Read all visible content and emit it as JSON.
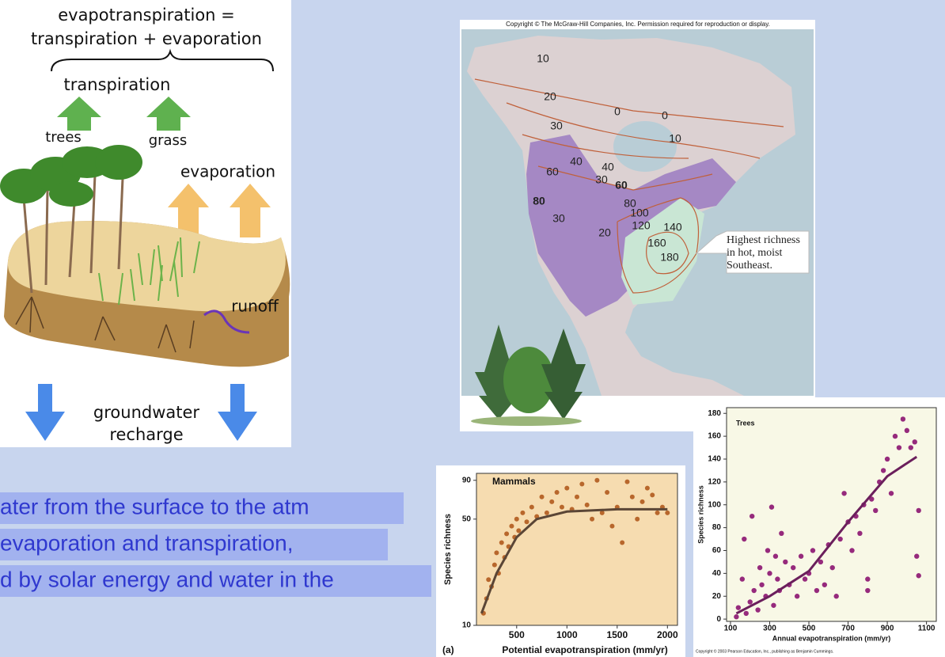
{
  "diagram": {
    "title_line1": "evapotranspiration =",
    "title_line2": "transpiration + evaporation",
    "transpiration": "transpiration",
    "trees": "trees",
    "grass": "grass",
    "evaporation": "evaporation",
    "runoff": "runoff",
    "groundwater": "groundwater",
    "recharge": "recharge"
  },
  "map": {
    "copyright": "Copyright © The McGraw-Hill Companies, Inc. Permission required for reproduction or display.",
    "contours": [
      10,
      20,
      0,
      0,
      10,
      30,
      40,
      40,
      30,
      60,
      60,
      80,
      80,
      100,
      120,
      140,
      160,
      180,
      30,
      20
    ],
    "callout": [
      "Highest richness",
      "in hot, moist",
      "Southeast."
    ]
  },
  "slide_text": [
    "ater from the surface to the atm",
    "evaporation and transpiration,",
    "d by solar energy and water in the"
  ],
  "chart_data": [
    {
      "type": "scatter",
      "title": "Mammals",
      "panel_label": "(a)",
      "x_label": "Potential evapotranspiration (mm/yr)",
      "y_label": "Species richness",
      "color": "#b8672c",
      "fit_color": "#5b4636",
      "yscale": "log",
      "xlim": [
        100,
        2100
      ],
      "ylim": [
        10,
        100
      ],
      "xticks": [
        500,
        1000,
        1500,
        2000
      ],
      "yticks": [
        10,
        50,
        90
      ],
      "x": [
        170,
        200,
        220,
        250,
        280,
        300,
        320,
        350,
        380,
        400,
        420,
        450,
        480,
        500,
        520,
        560,
        600,
        650,
        700,
        750,
        800,
        850,
        900,
        950,
        1000,
        1050,
        1100,
        1150,
        1200,
        1250,
        1300,
        1350,
        1400,
        1450,
        1500,
        1550,
        1600,
        1650,
        1700,
        1750,
        1800,
        1850,
        1900,
        1950,
        2000
      ],
      "values": [
        12,
        15,
        20,
        18,
        25,
        30,
        22,
        35,
        28,
        40,
        33,
        45,
        38,
        50,
        42,
        55,
        48,
        60,
        52,
        70,
        55,
        65,
        75,
        60,
        80,
        58,
        70,
        85,
        62,
        50,
        90,
        55,
        75,
        45,
        60,
        35,
        88,
        70,
        50,
        65,
        80,
        72,
        55,
        60,
        55
      ],
      "fit": {
        "x": [
          150,
          300,
          500,
          700,
          1000,
          1500,
          2000
        ],
        "values": [
          12,
          22,
          38,
          50,
          56,
          58,
          58
        ]
      }
    },
    {
      "type": "scatter",
      "title": "Trees",
      "x_label": "Annual evapotranspiration (mm/yr)",
      "y_label": "Species richness",
      "copyright": "Copyright © 2003 Pearson Education, Inc., publishing as Benjamin Cummings.",
      "color": "#962a7c",
      "fit_color": "#6b1f5c",
      "yscale": "linear",
      "xlim": [
        80,
        1150
      ],
      "ylim": [
        -2,
        185
      ],
      "xticks": [
        100,
        300,
        500,
        700,
        900,
        1100
      ],
      "yticks": [
        0,
        20,
        40,
        60,
        80,
        100,
        120,
        140,
        160,
        180
      ],
      "x": [
        130,
        140,
        160,
        170,
        180,
        200,
        210,
        220,
        240,
        250,
        260,
        280,
        290,
        300,
        310,
        320,
        330,
        340,
        350,
        360,
        380,
        400,
        420,
        440,
        460,
        480,
        500,
        520,
        540,
        560,
        580,
        600,
        620,
        640,
        660,
        680,
        700,
        720,
        740,
        760,
        780,
        800,
        800,
        820,
        840,
        860,
        880,
        900,
        920,
        940,
        960,
        980,
        1000,
        1020,
        1040,
        1050,
        1060,
        1060
      ],
      "values": [
        2,
        10,
        35,
        70,
        5,
        15,
        90,
        25,
        8,
        45,
        30,
        20,
        60,
        40,
        98,
        12,
        55,
        35,
        25,
        75,
        50,
        30,
        45,
        20,
        55,
        35,
        40,
        60,
        25,
        50,
        30,
        65,
        45,
        20,
        70,
        110,
        85,
        60,
        90,
        75,
        100,
        25,
        35,
        105,
        95,
        120,
        130,
        140,
        110,
        160,
        150,
        175,
        165,
        150,
        155,
        55,
        95,
        38
      ],
      "fit": {
        "x": [
          130,
          300,
          500,
          700,
          900,
          1050
        ],
        "values": [
          5,
          20,
          42,
          85,
          125,
          142
        ]
      }
    }
  ]
}
